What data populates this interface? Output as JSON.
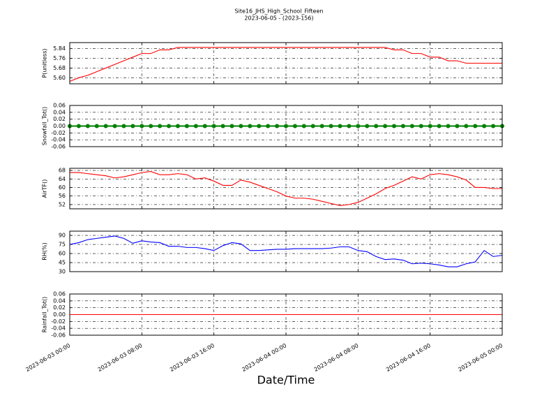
{
  "chart_data": [
    {
      "type": "line",
      "title": "Site16_JHS_High_School_Fifteen",
      "subtitle": "2023-06-05 - (2023-156)",
      "ylabel": "P(unitless)",
      "x": [
        "2023-06-03 00:00",
        "2023-06-03 01:00",
        "2023-06-03 02:00",
        "2023-06-03 03:00",
        "2023-06-03 04:00",
        "2023-06-03 05:00",
        "2023-06-03 06:00",
        "2023-06-03 07:00",
        "2023-06-03 08:00",
        "2023-06-03 09:00",
        "2023-06-03 10:00",
        "2023-06-03 11:00",
        "2023-06-03 12:00",
        "2023-06-03 13:00",
        "2023-06-03 14:00",
        "2023-06-03 15:00",
        "2023-06-03 16:00",
        "2023-06-03 17:00",
        "2023-06-03 18:00",
        "2023-06-03 19:00",
        "2023-06-03 20:00",
        "2023-06-03 21:00",
        "2023-06-03 22:00",
        "2023-06-03 23:00",
        "2023-06-04 00:00",
        "2023-06-04 01:00",
        "2023-06-04 02:00",
        "2023-06-04 03:00",
        "2023-06-04 04:00",
        "2023-06-04 05:00",
        "2023-06-04 06:00",
        "2023-06-04 07:00",
        "2023-06-04 08:00",
        "2023-06-04 09:00",
        "2023-06-04 10:00",
        "2023-06-04 11:00",
        "2023-06-04 12:00",
        "2023-06-04 13:00",
        "2023-06-04 14:00",
        "2023-06-04 15:00",
        "2023-06-04 16:00",
        "2023-06-04 17:00",
        "2023-06-04 18:00",
        "2023-06-04 19:00",
        "2023-06-04 20:00",
        "2023-06-04 21:00",
        "2023-06-04 22:00",
        "2023-06-04 23:00",
        "2023-06-05 00:00"
      ],
      "series": [
        {
          "color": "#ff0000",
          "values": [
            5.57,
            5.6,
            5.62,
            5.65,
            5.68,
            5.71,
            5.74,
            5.77,
            5.8,
            5.8,
            5.83,
            5.83,
            5.85,
            5.85,
            5.85,
            5.85,
            5.85,
            5.85,
            5.85,
            5.85,
            5.85,
            5.85,
            5.85,
            5.85,
            5.85,
            5.85,
            5.85,
            5.85,
            5.85,
            5.85,
            5.85,
            5.85,
            5.85,
            5.85,
            5.85,
            5.85,
            5.83,
            5.83,
            5.8,
            5.8,
            5.77,
            5.77,
            5.74,
            5.74,
            5.72,
            5.72,
            5.72,
            5.72,
            5.72
          ]
        }
      ],
      "ylim": [
        5.55,
        5.89
      ],
      "yticks": [
        {
          "value": 5.6,
          "label": "5.60"
        },
        5.68,
        5.76,
        5.84
      ],
      "grid": true
    },
    {
      "type": "line",
      "ylabel": "Snowfall_Tot()",
      "marker": true,
      "x": [
        "2023-06-03 00:00",
        "2023-06-03 01:00",
        "2023-06-03 02:00",
        "2023-06-03 03:00",
        "2023-06-03 04:00",
        "2023-06-03 05:00",
        "2023-06-03 06:00",
        "2023-06-03 07:00",
        "2023-06-03 08:00",
        "2023-06-03 09:00",
        "2023-06-03 10:00",
        "2023-06-03 11:00",
        "2023-06-03 12:00",
        "2023-06-03 13:00",
        "2023-06-03 14:00",
        "2023-06-03 15:00",
        "2023-06-03 16:00",
        "2023-06-03 17:00",
        "2023-06-03 18:00",
        "2023-06-03 19:00",
        "2023-06-03 20:00",
        "2023-06-03 21:00",
        "2023-06-03 22:00",
        "2023-06-03 23:00",
        "2023-06-04 00:00",
        "2023-06-04 01:00",
        "2023-06-04 02:00",
        "2023-06-04 03:00",
        "2023-06-04 04:00",
        "2023-06-04 05:00",
        "2023-06-04 06:00",
        "2023-06-04 07:00",
        "2023-06-04 08:00",
        "2023-06-04 09:00",
        "2023-06-04 10:00",
        "2023-06-04 11:00",
        "2023-06-04 12:00",
        "2023-06-04 13:00",
        "2023-06-04 14:00",
        "2023-06-04 15:00",
        "2023-06-04 16:00",
        "2023-06-04 17:00",
        "2023-06-04 18:00",
        "2023-06-04 19:00",
        "2023-06-04 20:00",
        "2023-06-04 21:00",
        "2023-06-04 22:00",
        "2023-06-04 23:00",
        "2023-06-05 00:00"
      ],
      "series": [
        {
          "color": "#008000",
          "values": [
            0,
            0,
            0,
            0,
            0,
            0,
            0,
            0,
            0,
            0,
            0,
            0,
            0,
            0,
            0,
            0,
            0,
            0,
            0,
            0,
            0,
            0,
            0,
            0,
            0,
            0,
            0,
            0,
            0,
            0,
            0,
            0,
            0,
            0,
            0,
            0,
            0,
            0,
            0,
            0,
            0,
            0,
            0,
            0,
            0,
            0,
            0,
            0,
            0
          ]
        }
      ],
      "ylim": [
        -0.06,
        0.06
      ],
      "yticks": [
        -0.06,
        -0.04,
        -0.02,
        {
          "value": 0,
          "label": "0.00"
        },
        0.02,
        0.04,
        0.06
      ],
      "grid": true
    },
    {
      "type": "line",
      "ylabel": "AirTF()",
      "x": [
        "2023-06-03 00:00",
        "2023-06-03 01:00",
        "2023-06-03 02:00",
        "2023-06-03 03:00",
        "2023-06-03 04:00",
        "2023-06-03 05:00",
        "2023-06-03 06:00",
        "2023-06-03 07:00",
        "2023-06-03 08:00",
        "2023-06-03 09:00",
        "2023-06-03 10:00",
        "2023-06-03 11:00",
        "2023-06-03 12:00",
        "2023-06-03 13:00",
        "2023-06-03 14:00",
        "2023-06-03 15:00",
        "2023-06-03 16:00",
        "2023-06-03 17:00",
        "2023-06-03 18:00",
        "2023-06-03 19:00",
        "2023-06-03 20:00",
        "2023-06-03 21:00",
        "2023-06-03 22:00",
        "2023-06-03 23:00",
        "2023-06-04 00:00",
        "2023-06-04 01:00",
        "2023-06-04 02:00",
        "2023-06-04 03:00",
        "2023-06-04 04:00",
        "2023-06-04 05:00",
        "2023-06-04 06:00",
        "2023-06-04 07:00",
        "2023-06-04 08:00",
        "2023-06-04 09:00",
        "2023-06-04 10:00",
        "2023-06-04 11:00",
        "2023-06-04 12:00",
        "2023-06-04 13:00",
        "2023-06-04 14:00",
        "2023-06-04 15:00",
        "2023-06-04 16:00",
        "2023-06-04 17:00",
        "2023-06-04 18:00",
        "2023-06-04 19:00",
        "2023-06-04 20:00",
        "2023-06-04 21:00",
        "2023-06-04 22:00",
        "2023-06-04 23:00",
        "2023-06-05 00:00"
      ],
      "series": [
        {
          "color": "#ff0000",
          "values": [
            67,
            67,
            66.5,
            66,
            65.5,
            64.5,
            65,
            66,
            67,
            67.5,
            66,
            66,
            66.5,
            66,
            64,
            64.5,
            63,
            61,
            61,
            63.5,
            62.5,
            61,
            59.5,
            58,
            56,
            55,
            55,
            54.5,
            53.5,
            52.5,
            51.5,
            52,
            53,
            55,
            57,
            59.5,
            61,
            63,
            65,
            64,
            66,
            66.5,
            66,
            65,
            63.5,
            60,
            60,
            59.5,
            59.5
          ]
        }
      ],
      "ylim": [
        50,
        69
      ],
      "yticks": [
        52,
        56,
        60,
        64,
        68
      ],
      "grid": true
    },
    {
      "type": "line",
      "ylabel": "RH(%)",
      "x": [
        "2023-06-03 00:00",
        "2023-06-03 01:00",
        "2023-06-03 02:00",
        "2023-06-03 03:00",
        "2023-06-03 04:00",
        "2023-06-03 05:00",
        "2023-06-03 06:00",
        "2023-06-03 07:00",
        "2023-06-03 08:00",
        "2023-06-03 09:00",
        "2023-06-03 10:00",
        "2023-06-03 11:00",
        "2023-06-03 12:00",
        "2023-06-03 13:00",
        "2023-06-03 14:00",
        "2023-06-03 15:00",
        "2023-06-03 16:00",
        "2023-06-03 17:00",
        "2023-06-03 18:00",
        "2023-06-03 19:00",
        "2023-06-03 20:00",
        "2023-06-03 21:00",
        "2023-06-03 22:00",
        "2023-06-03 23:00",
        "2023-06-04 00:00",
        "2023-06-04 01:00",
        "2023-06-04 02:00",
        "2023-06-04 03:00",
        "2023-06-04 04:00",
        "2023-06-04 05:00",
        "2023-06-04 06:00",
        "2023-06-04 07:00",
        "2023-06-04 08:00",
        "2023-06-04 09:00",
        "2023-06-04 10:00",
        "2023-06-04 11:00",
        "2023-06-04 12:00",
        "2023-06-04 13:00",
        "2023-06-04 14:00",
        "2023-06-04 15:00",
        "2023-06-04 16:00",
        "2023-06-04 17:00",
        "2023-06-04 18:00",
        "2023-06-04 19:00",
        "2023-06-04 20:00",
        "2023-06-04 21:00",
        "2023-06-04 22:00",
        "2023-06-04 23:00",
        "2023-06-05 00:00"
      ],
      "series": [
        {
          "color": "#0000ff",
          "values": [
            75,
            78,
            83,
            85,
            87,
            89,
            85,
            77,
            81,
            79,
            78,
            72,
            72,
            70,
            70,
            68,
            65,
            73,
            78,
            76,
            65,
            65,
            66,
            67,
            67,
            68,
            68,
            68,
            68,
            69,
            71,
            71,
            65,
            63,
            55,
            50,
            51,
            49,
            43,
            44,
            43,
            41,
            38,
            38,
            43,
            46,
            65,
            55,
            57
          ]
        }
      ],
      "ylim": [
        30,
        97
      ],
      "yticks": [
        30,
        45,
        60,
        75,
        90
      ],
      "grid": true
    },
    {
      "type": "line",
      "ylabel": "Rainfall_Tot()",
      "xlabel": "Date/Time",
      "x": [
        "2023-06-03 00:00",
        "2023-06-03 01:00",
        "2023-06-03 02:00",
        "2023-06-03 03:00",
        "2023-06-03 04:00",
        "2023-06-03 05:00",
        "2023-06-03 06:00",
        "2023-06-03 07:00",
        "2023-06-03 08:00",
        "2023-06-03 09:00",
        "2023-06-03 10:00",
        "2023-06-03 11:00",
        "2023-06-03 12:00",
        "2023-06-03 13:00",
        "2023-06-03 14:00",
        "2023-06-03 15:00",
        "2023-06-03 16:00",
        "2023-06-03 17:00",
        "2023-06-03 18:00",
        "2023-06-03 19:00",
        "2023-06-03 20:00",
        "2023-06-03 21:00",
        "2023-06-03 22:00",
        "2023-06-03 23:00",
        "2023-06-04 00:00",
        "2023-06-04 01:00",
        "2023-06-04 02:00",
        "2023-06-04 03:00",
        "2023-06-04 04:00",
        "2023-06-04 05:00",
        "2023-06-04 06:00",
        "2023-06-04 07:00",
        "2023-06-04 08:00",
        "2023-06-04 09:00",
        "2023-06-04 10:00",
        "2023-06-04 11:00",
        "2023-06-04 12:00",
        "2023-06-04 13:00",
        "2023-06-04 14:00",
        "2023-06-04 15:00",
        "2023-06-04 16:00",
        "2023-06-04 17:00",
        "2023-06-04 18:00",
        "2023-06-04 19:00",
        "2023-06-04 20:00",
        "2023-06-04 21:00",
        "2023-06-04 22:00",
        "2023-06-04 23:00",
        "2023-06-05 00:00"
      ],
      "series": [
        {
          "color": "#ff0000",
          "values": [
            0,
            0,
            0,
            0,
            0,
            0,
            0,
            0,
            0,
            0,
            0,
            0,
            0,
            0,
            0,
            0,
            0,
            0,
            0,
            0,
            0,
            0,
            0,
            0,
            0,
            0,
            0,
            0,
            0,
            0,
            0,
            0,
            0,
            0,
            0,
            0,
            0,
            0,
            0,
            0,
            0,
            0,
            0,
            0,
            0,
            0,
            0,
            0,
            0
          ]
        }
      ],
      "ylim": [
        -0.06,
        0.06
      ],
      "yticks": [
        -0.06,
        -0.04,
        -0.02,
        {
          "value": 0,
          "label": "0.00"
        },
        0.02,
        0.04,
        0.06
      ],
      "grid": true,
      "xlim": [
        "2023-06-03 00:00",
        "2023-06-05 00:00"
      ],
      "xticks": [
        "2023-06-03 00:00",
        "2023-06-03 08:00",
        "2023-06-03 16:00",
        "2023-06-04 00:00",
        "2023-06-04 08:00",
        "2023-06-04 16:00",
        "2023-06-05 00:00"
      ]
    }
  ]
}
